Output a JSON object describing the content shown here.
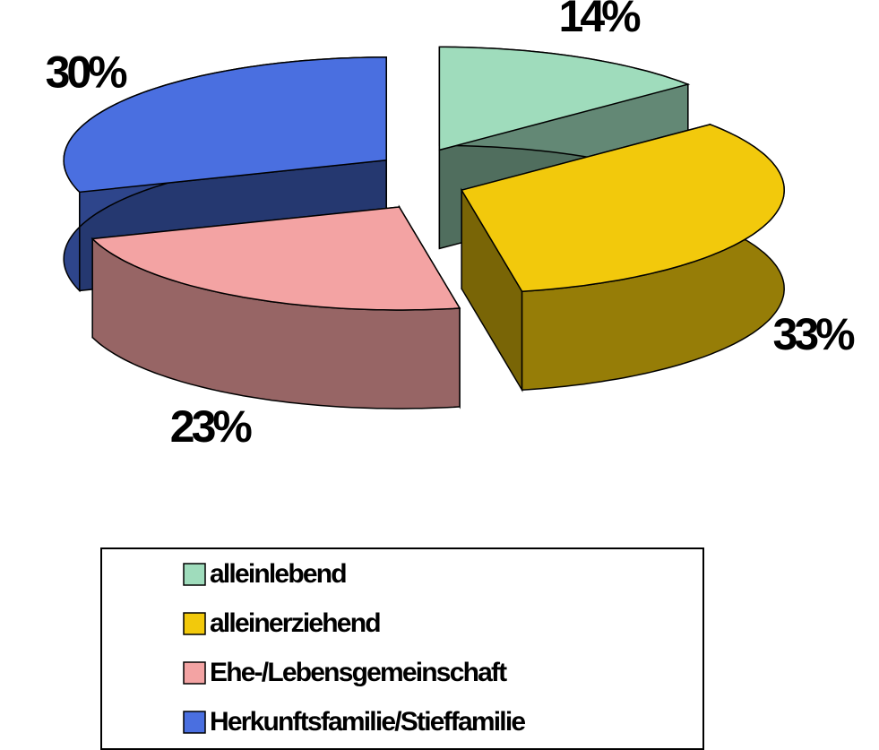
{
  "chart_data": {
    "type": "pie",
    "categories": [
      "alleinlebend",
      "alleinerziehend",
      "Ehe-/Lebensgemeinschaft",
      "Herkunftsfamilie/Stieffamilie"
    ],
    "values": [
      14,
      33,
      23,
      30
    ],
    "value_labels": [
      "14%",
      "33%",
      "23%",
      "30%"
    ],
    "colors": [
      "#9fdcbc",
      "#f2c90c",
      "#f3a3a3",
      "#4a6fe0"
    ],
    "legend": "bottom"
  }
}
